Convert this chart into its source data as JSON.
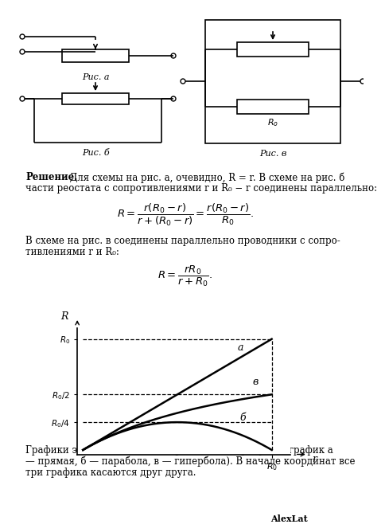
{
  "background_color": "#ffffff",
  "R0": 1.0,
  "pic_a_label": "Рис. а",
  "pic_b_label": "Рис. б",
  "pic_v_label": "Рис. в",
  "watermark": "AlexLat",
  "sol_bold": "Решение.",
  "sol_rest1": " Для схемы на рис. а, очевидно, R = r. В схеме на рис. б",
  "sol_line2": "части реостата с сопротивлениями r и R₀ − r соединены параллельно:",
  "text_v1": "В схеме на рис. в соединены параллельно проводники с сопро-",
  "text_v2": "тивлениями r и R₀:",
  "footer1": "Графики этих зависимостей приведены на рисунке (график а",
  "footer2": "— прямая, б — парабола, в — гипербола). В начале координат все",
  "footer3": "три графика касаются друг друга.",
  "curve_a": "а",
  "curve_b": "б",
  "curve_v": "в"
}
